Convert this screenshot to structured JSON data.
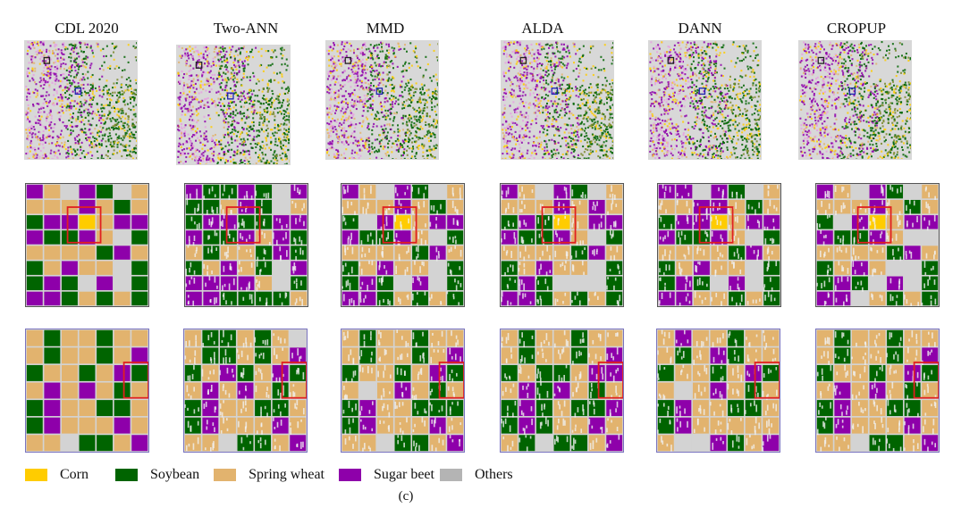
{
  "figure": {
    "columns": [
      {
        "id": "cdl",
        "title": "CDL 2020"
      },
      {
        "id": "twoann",
        "title": "Two-ANN"
      },
      {
        "id": "mmd",
        "title": "MMD"
      },
      {
        "id": "alda",
        "title": "ALDA"
      },
      {
        "id": "dann",
        "title": "DANN"
      },
      {
        "id": "cropup",
        "title": "CROPUP"
      }
    ],
    "legend": [
      {
        "label": "Corn",
        "color": "#FFCC00"
      },
      {
        "label": "Soybean",
        "color": "#006400"
      },
      {
        "label": "Spring wheat",
        "color": "#E2B36E"
      },
      {
        "label": "Sugar beet",
        "color": "#8E00AA"
      },
      {
        "label": "Others",
        "color": "#B4B4B4"
      }
    ],
    "caption": "(c)",
    "colors": {
      "background": "#D8D8D8",
      "corn": "#FFCC00",
      "soybean": "#006400",
      "spring_wheat": "#E2B36E",
      "sugar_beet": "#8E00AA",
      "others": "#D3D3D3",
      "highlight_box": "#E02020",
      "overview_box_black": "#222222",
      "overview_box_blue": "#1E22B0"
    }
  }
}
